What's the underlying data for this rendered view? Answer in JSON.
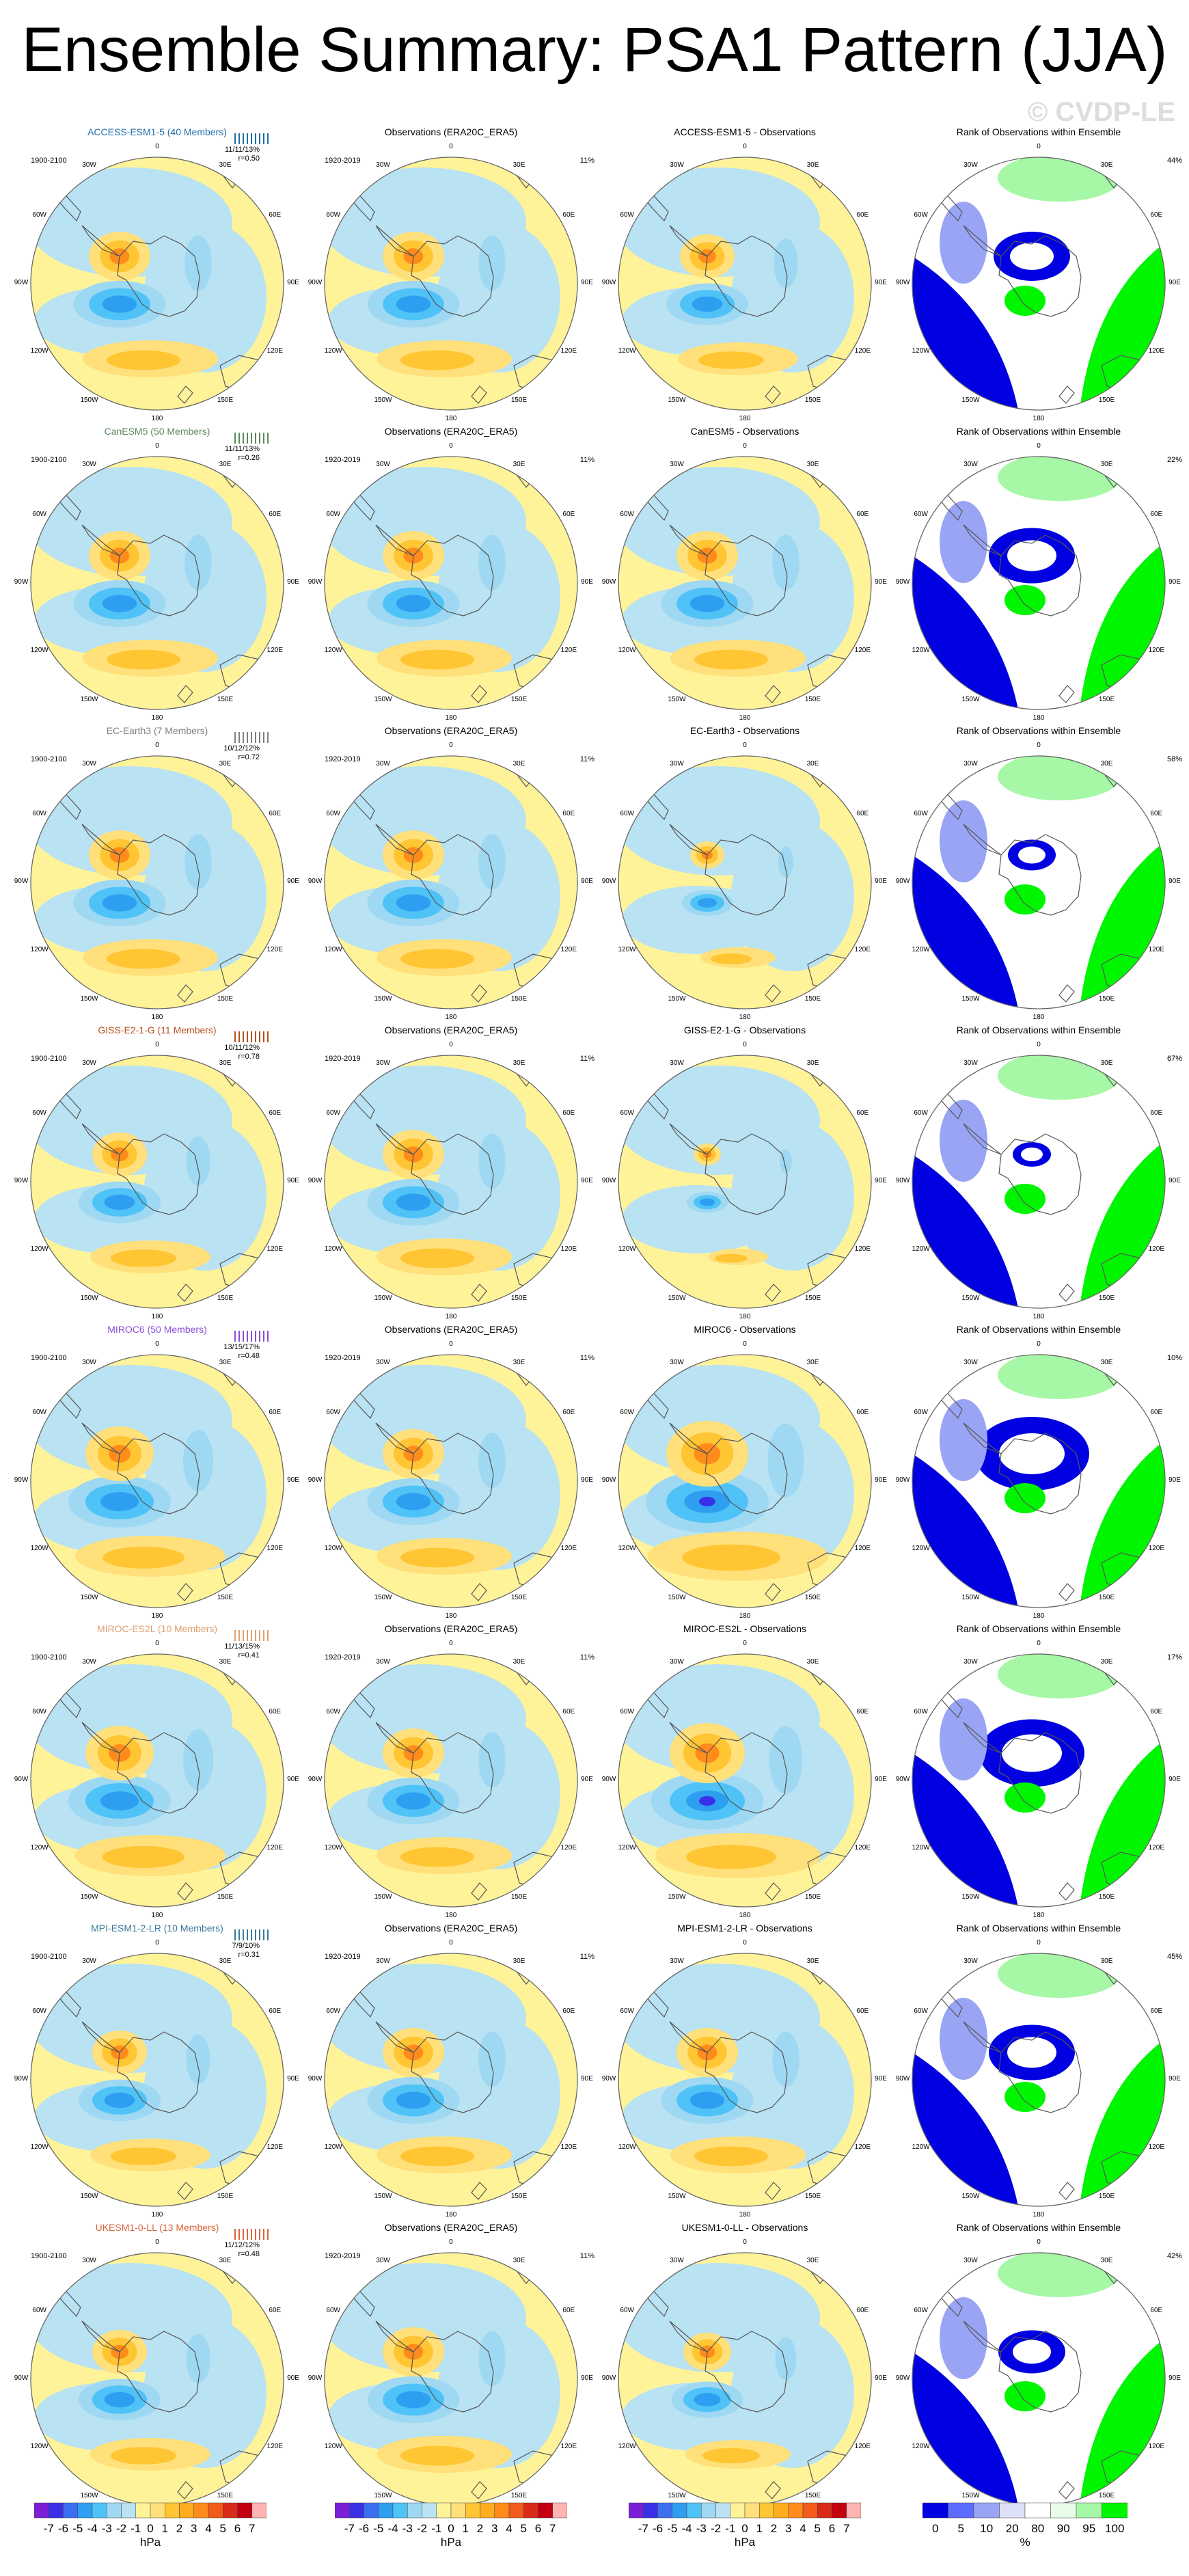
{
  "title": "Ensemble Summary: PSA1 Pattern (JJA)",
  "watermark": "© CVDP-LE",
  "colors": {
    "anomaly_levels": [
      "#7a1fd6",
      "#3a30e8",
      "#3c6ef0",
      "#2e9ff0",
      "#4fc3f7",
      "#9fd8f2",
      "#b9e2f2",
      "#fff39a",
      "#ffe07a",
      "#ffc533",
      "#ffad1e",
      "#ff8c1a",
      "#f25b1a",
      "#d92a1a",
      "#c40010",
      "#ffb3b3"
    ],
    "rank_levels": [
      "#0000e0",
      "#5c6cff",
      "#9aa4f5",
      "#dde1f7",
      "#ffffff",
      "#e9fce9",
      "#a6f7a6",
      "#00f500"
    ],
    "coast": "#555555",
    "map_bg_blue": "#b9e2f2",
    "map_bg_yellow": "#fff39a"
  },
  "chart_data": {
    "type": "polar-contour-maps",
    "projection": "South polar stereographic",
    "longitude_labels": [
      "0",
      "30E",
      "60E",
      "90E",
      "120E",
      "150E",
      "180",
      "150W",
      "120W",
      "90W",
      "60W",
      "30W"
    ],
    "column_titles": {
      "observations": "Observations (ERA20C_ERA5)",
      "rank": "Rank of Observations within Ensemble"
    },
    "obs_period": "1920-2019",
    "model_period": "1900-2100",
    "obs_percent": "11%",
    "rows": [
      {
        "model_title": "ACCESS-ESM1-5 (40 Members)",
        "color": "#1f6fa8",
        "stats": "11/11/13%",
        "r": "r=0.50",
        "diff_title": "ACCESS-ESM1-5 - Observations",
        "rank_pct": "44%",
        "strength": 0.9,
        "diff_strength": 0.8
      },
      {
        "model_title": "CanESM5 (50 Members)",
        "color": "#5a8a5a",
        "stats": "11/11/13%",
        "r": "r=0.26",
        "diff_title": "CanESM5 - Observations",
        "rank_pct": "22%",
        "strength": 0.9,
        "diff_strength": 0.9
      },
      {
        "model_title": "EC-Earth3 (7 Members)",
        "color": "#808080",
        "stats": "10/12/12%",
        "r": "r=0.72",
        "diff_title": "EC-Earth3 - Observations",
        "rank_pct": "58%",
        "strength": 0.9,
        "diff_strength": 0.5
      },
      {
        "model_title": "GISS-E2-1-G (11 Members)",
        "color": "#b84f1a",
        "stats": "10/11/12%",
        "r": "r=0.78",
        "diff_title": "GISS-E2-1-G - Observations",
        "rank_pct": "67%",
        "strength": 0.8,
        "diff_strength": 0.4
      },
      {
        "model_title": "MIROC6 (50 Members)",
        "color": "#8a4fd6",
        "stats": "13/15/17%",
        "r": "r=0.48",
        "diff_title": "MIROC6 - Observations",
        "rank_pct": "10%",
        "strength": 1.0,
        "diff_strength": 1.2
      },
      {
        "model_title": "MIROC-ES2L (10 Members)",
        "color": "#e0a070",
        "stats": "11/13/15%",
        "r": "r=0.41",
        "diff_title": "MIROC-ES2L - Observations",
        "rank_pct": "17%",
        "strength": 1.0,
        "diff_strength": 1.1
      },
      {
        "model_title": "MPI-ESM1-2-LR (10 Members)",
        "color": "#3a7a9a",
        "stats": "7/9/10%",
        "r": "r=0.31",
        "diff_title": "MPI-ESM1-2-LR - Observations",
        "rank_pct": "45%",
        "strength": 0.8,
        "diff_strength": 0.9
      },
      {
        "model_title": "UKESM1-0-LL (13 Members)",
        "color": "#d8653a",
        "stats": "11/12/12%",
        "r": "r=0.48",
        "diff_title": "UKESM1-0-LL - Observations",
        "rank_pct": "42%",
        "strength": 0.8,
        "diff_strength": 0.7
      }
    ],
    "anomaly_colorbar": {
      "ticks": [
        "-7",
        "-6",
        "-5",
        "-4",
        "-3",
        "-2",
        "-1",
        "0",
        "1",
        "2",
        "3",
        "4",
        "5",
        "6",
        "7"
      ],
      "unit": "hPa"
    },
    "rank_colorbar": {
      "ticks": [
        "0",
        "5",
        "10",
        "20",
        "80",
        "90",
        "95",
        "100"
      ],
      "unit": "%"
    }
  }
}
